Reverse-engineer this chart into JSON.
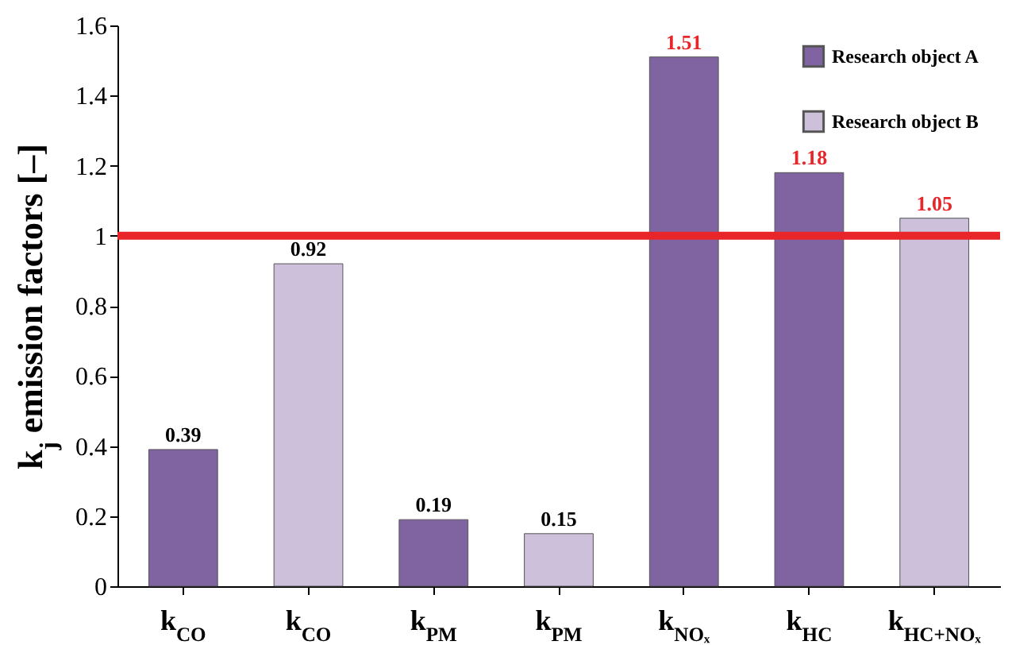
{
  "chart_data": {
    "type": "bar",
    "ylabel": "k$_{j}$ emission factors [–]",
    "categories": [
      "k$_{CO}$",
      "k$_{CO}$",
      "k$_{PM}$",
      "k$_{PM}$",
      "k$_{NOₓ}$",
      "k$_{HC}$",
      "k$_{HC+NOₓ}$"
    ],
    "series": [
      {
        "name": "Research object A",
        "color": "#8064a2",
        "values": [
          0.39,
          null,
          0.19,
          null,
          1.51,
          1.18,
          null
        ]
      },
      {
        "name": "Research object B",
        "color": "#ccc0da",
        "values": [
          null,
          0.92,
          null,
          0.15,
          null,
          null,
          1.05
        ]
      }
    ],
    "ylim": [
      0,
      1.6
    ],
    "yticks": [
      0,
      0.2,
      0.4,
      0.6,
      0.8,
      1,
      1.2,
      1.4,
      1.6
    ],
    "ref_lines": [
      {
        "axis": "y",
        "value": 1,
        "color": "#e8262a"
      }
    ],
    "data_labels": true,
    "legend": "top right",
    "grid": false
  }
}
